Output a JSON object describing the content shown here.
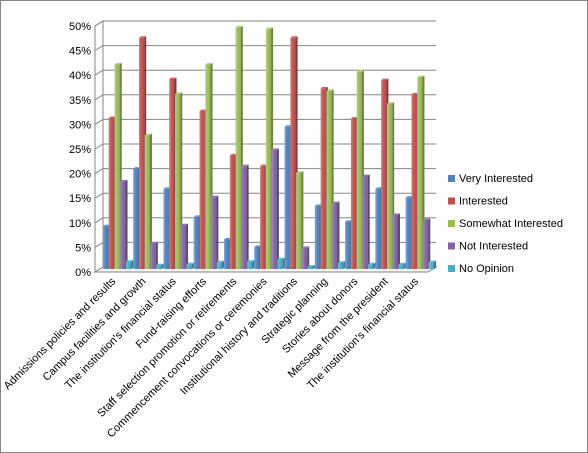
{
  "chart_data": {
    "type": "bar",
    "categories": [
      "Admissions policies and results",
      "Campus facilities and growth",
      "The institution's financial status",
      "Fund-raising efforts",
      "Staff selection promotion or retirements",
      "Commencement convocations or ceremonies",
      "Institutional history and traditions",
      "Strategic planning",
      "Stories about donors",
      "Message from the president",
      "The institution's financial status"
    ],
    "series": [
      {
        "name": "Very Interested",
        "color": "#4F81BD",
        "values": [
          8.7,
          20.4,
          16.3,
          10.6,
          6.0,
          4.5,
          28.9,
          12.8,
          9.6,
          16.3,
          14.5
        ]
      },
      {
        "name": "Interested",
        "color": "#C0504D",
        "values": [
          30.7,
          47.0,
          38.6,
          32.1,
          23.1,
          20.9,
          47.0,
          36.7,
          30.6,
          38.4,
          35.5
        ]
      },
      {
        "name": "Somewhat Interested",
        "color": "#9BBB59",
        "values": [
          41.6,
          27.2,
          35.6,
          41.6,
          49.1,
          48.8,
          19.6,
          36.2,
          40.1,
          33.6,
          39.0
        ]
      },
      {
        "name": "Not Interested",
        "color": "#8064A2",
        "values": [
          17.8,
          5.2,
          8.9,
          14.6,
          20.9,
          24.2,
          4.3,
          13.4,
          18.9,
          11.0,
          10.0
        ]
      },
      {
        "name": "No Opinion",
        "color": "#4BACC6",
        "values": [
          1.5,
          0.8,
          1.0,
          1.4,
          1.5,
          2.0,
          0.5,
          1.3,
          1.0,
          1.0,
          1.4
        ]
      }
    ],
    "y_ticks": [
      "0%",
      "5%",
      "10%",
      "15%",
      "20%",
      "25%",
      "30%",
      "35%",
      "40%",
      "45%",
      "50%"
    ],
    "ylim": [
      0,
      50
    ],
    "y_format": "percent",
    "grid": true,
    "legend_position": "right"
  }
}
